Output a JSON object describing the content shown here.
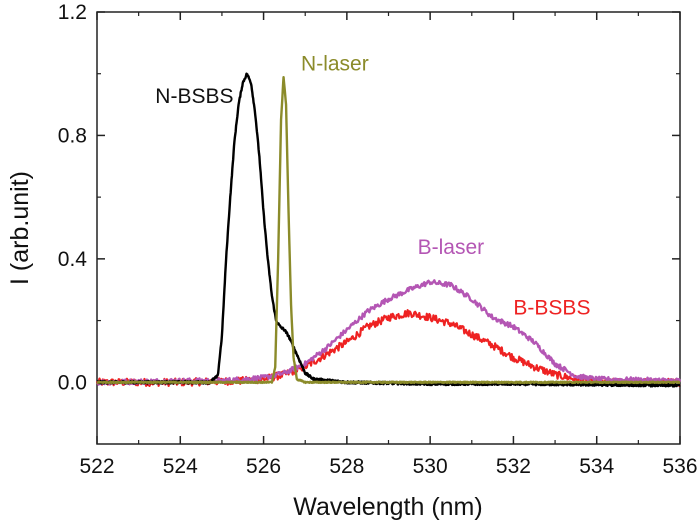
{
  "chart_data": {
    "type": "line",
    "xlabel": "Wavelength (nm)",
    "ylabel": "I (arb.unit)",
    "xlim": [
      522,
      536
    ],
    "ylim": [
      -0.2,
      1.2
    ],
    "xticks": [
      {
        "value": 522,
        "label": "522"
      },
      {
        "value": 524,
        "label": "524"
      },
      {
        "value": 526,
        "label": "526"
      },
      {
        "value": 528,
        "label": "528"
      },
      {
        "value": 530,
        "label": "530"
      },
      {
        "value": 532,
        "label": "532"
      },
      {
        "value": 534,
        "label": "534"
      },
      {
        "value": 536,
        "label": "536"
      }
    ],
    "yticks": [
      {
        "value": 0.0,
        "label": "0.0"
      },
      {
        "value": 0.4,
        "label": "0.4"
      },
      {
        "value": 0.8,
        "label": "0.8"
      },
      {
        "value": 1.2,
        "label": "1.2"
      }
    ],
    "series": [
      {
        "name": "B-BSBS",
        "color": "#ee2222",
        "label_pos": [
          532.0,
          0.22
        ],
        "points": [
          [
            522.0,
            0.0
          ],
          [
            524.0,
            0.0
          ],
          [
            525.5,
            0.005
          ],
          [
            526.0,
            0.01
          ],
          [
            526.5,
            0.025
          ],
          [
            527.0,
            0.05
          ],
          [
            527.5,
            0.09
          ],
          [
            528.0,
            0.13
          ],
          [
            528.5,
            0.18
          ],
          [
            529.0,
            0.21
          ],
          [
            529.5,
            0.225
          ],
          [
            530.0,
            0.21
          ],
          [
            530.5,
            0.19
          ],
          [
            531.0,
            0.155
          ],
          [
            531.5,
            0.12
          ],
          [
            532.0,
            0.08
          ],
          [
            532.5,
            0.05
          ],
          [
            533.0,
            0.025
          ],
          [
            533.5,
            0.01
          ],
          [
            534.0,
            0.0
          ],
          [
            536.0,
            0.0
          ]
        ]
      },
      {
        "name": "B-laser",
        "color": "#b456b4",
        "label_pos": [
          529.7,
          0.415
        ],
        "points": [
          [
            522.0,
            0.0
          ],
          [
            524.0,
            0.005
          ],
          [
            525.0,
            0.005
          ],
          [
            526.0,
            0.015
          ],
          [
            526.5,
            0.03
          ],
          [
            527.0,
            0.06
          ],
          [
            527.5,
            0.11
          ],
          [
            528.0,
            0.17
          ],
          [
            528.5,
            0.23
          ],
          [
            529.0,
            0.27
          ],
          [
            529.5,
            0.3
          ],
          [
            530.0,
            0.325
          ],
          [
            530.5,
            0.315
          ],
          [
            531.0,
            0.27
          ],
          [
            531.5,
            0.21
          ],
          [
            532.0,
            0.18
          ],
          [
            532.5,
            0.13
          ],
          [
            533.0,
            0.06
          ],
          [
            533.5,
            0.02
          ],
          [
            534.0,
            0.01
          ],
          [
            536.0,
            0.005
          ]
        ]
      },
      {
        "name": "N-BSBS",
        "color": "#000000",
        "label_pos": [
          523.4,
          0.905
        ],
        "points": [
          [
            522.0,
            0.0
          ],
          [
            524.7,
            0.0
          ],
          [
            524.9,
            0.02
          ],
          [
            525.0,
            0.15
          ],
          [
            525.1,
            0.4
          ],
          [
            525.2,
            0.6
          ],
          [
            525.3,
            0.78
          ],
          [
            525.4,
            0.9
          ],
          [
            525.5,
            0.97
          ],
          [
            525.6,
            1.0
          ],
          [
            525.7,
            0.97
          ],
          [
            525.8,
            0.87
          ],
          [
            525.9,
            0.73
          ],
          [
            526.0,
            0.55
          ],
          [
            526.1,
            0.4
          ],
          [
            526.2,
            0.28
          ],
          [
            526.3,
            0.2
          ],
          [
            526.4,
            0.18
          ],
          [
            526.5,
            0.17
          ],
          [
            526.6,
            0.15
          ],
          [
            526.8,
            0.09
          ],
          [
            527.0,
            0.03
          ],
          [
            527.2,
            0.01
          ],
          [
            528.0,
            0.0
          ],
          [
            530.0,
            -0.005
          ],
          [
            532.0,
            -0.005
          ],
          [
            536.0,
            -0.01
          ]
        ]
      },
      {
        "name": "N-laser",
        "color": "#8b8b2a",
        "label_pos": [
          526.9,
          1.01
        ],
        "points": [
          [
            522.0,
            0.0
          ],
          [
            526.2,
            0.0
          ],
          [
            526.28,
            0.05
          ],
          [
            526.35,
            0.4
          ],
          [
            526.42,
            0.85
          ],
          [
            526.48,
            0.99
          ],
          [
            526.54,
            0.9
          ],
          [
            526.6,
            0.55
          ],
          [
            526.66,
            0.25
          ],
          [
            526.72,
            0.08
          ],
          [
            526.8,
            0.01
          ],
          [
            527.0,
            0.0
          ],
          [
            536.0,
            0.0
          ]
        ]
      }
    ]
  }
}
